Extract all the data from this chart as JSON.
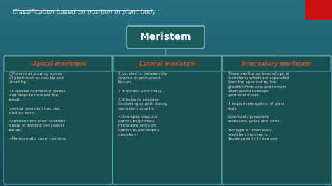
{
  "title_text": "Classification based on position in plant body :",
  "main_node": "Meristem",
  "bg_color": "#1e5f6a",
  "box_bg": "#1a5055",
  "box_border": "#5aacac",
  "main_box_bg": "#2a6060",
  "main_box_border": "#7abcbc",
  "header_color": "#cc5522",
  "text_color": "#dddddd",
  "title_color": "#e8e8e8",
  "red_corner": "#cc1111",
  "line_color": "#779999",
  "columns": [
    {
      "header": "-Apical meristem",
      "content": "○Present at growing apices\nof plant such as root tip and\nshoot tip.\n\n•It divides in different planes\nand helps to increase the\nlength.\n\n•Apical meristem has two\ndistinct zone:\n\n•Promeristem zone: contains\ngroup of dividing cell (apical\ninitials)\n\n•Meristematic zone: contains"
    },
    {
      "header": "Lateral meristem",
      "content": "1.Located in between the\nregions of permanent\ntissues.\n\n2.It divides periclinally .\n\n3.It helps to increase\nthickening or girth during\nsecondary growth.\n\n4.Example: vascular\ncambium (primary\nmeristem) and cork\ncambium (secondary\nmeristem)"
    },
    {
      "header": "Intercalary meristem",
      "content": "These are the portions of apical\nmeristems which are separated\nfrom the apex during the\ngrowth of the axis and remain\nintercalated between\npermanent cells.\n\nIt helps in elongation of plant\nbody.\n\nCommonly present in\nmonocots, grass and pines.\n\nTwo type of intercalary\nmeristem involved in\ndevelopment of internode"
    }
  ]
}
